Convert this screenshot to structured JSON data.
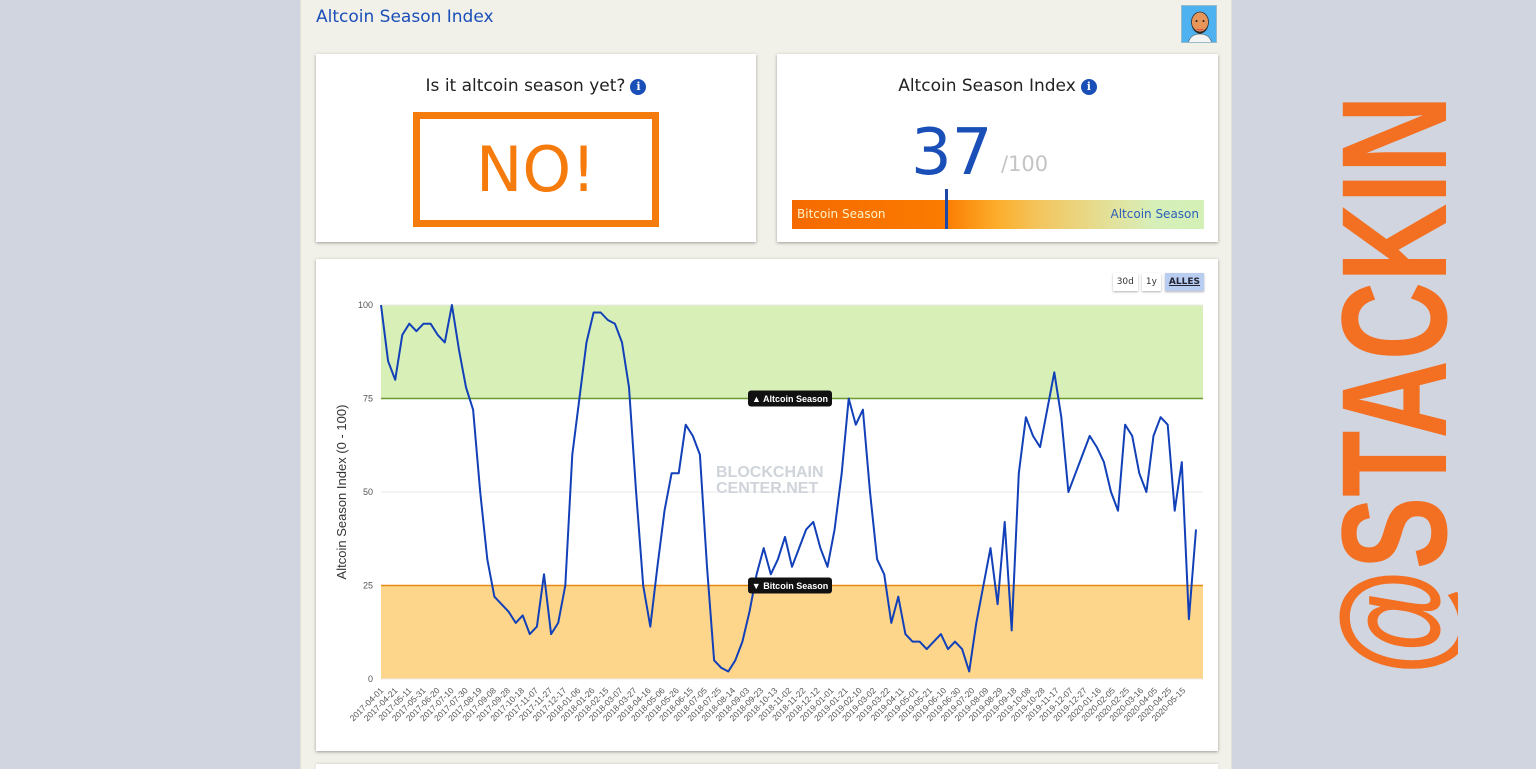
{
  "header": {
    "site_title": "Altcoin Season Index",
    "avatar_icon": "user-avatar-icon"
  },
  "season_card": {
    "title": "Is it altcoin season yet?",
    "info_icon": "i",
    "answer": "NO!",
    "answer_color": "#f57c0c"
  },
  "index_card": {
    "title": "Altcoin Season Index",
    "info_icon": "i",
    "value": "37",
    "max_label": "/100",
    "gauge_left_label": "Bitcoin Season",
    "gauge_right_label": "Altcoin Season",
    "value_color": "#1a4fb8"
  },
  "chart_controls": {
    "buttons": [
      {
        "label": "30d",
        "active": false
      },
      {
        "label": "1y",
        "active": false
      },
      {
        "label": "ALLES",
        "active": true
      }
    ]
  },
  "watermark": {
    "line1": "BLOCKCHAIN",
    "line2": "CENTER.NET"
  },
  "side_watermark": "@STACKIN",
  "chart_data": {
    "type": "line",
    "title": "",
    "xlabel": "",
    "ylabel": "Altcoin Season Index (0 - 100)",
    "ylim": [
      0,
      100
    ],
    "yticks": [
      0,
      25,
      50,
      75,
      100
    ],
    "grid": true,
    "legend": "none",
    "line_color": "#1240b8",
    "bands": [
      {
        "name": "Altcoin Season",
        "from": 75,
        "to": 100,
        "color": "#d8f0b8",
        "line_color": "#6a9a30",
        "label": "▲ Altcoin Season"
      },
      {
        "name": "Bitcoin Season",
        "from": 0,
        "to": 25,
        "color": "#fdd68c",
        "line_color": "#e88a10",
        "label": "▼ Bitcoin Season"
      }
    ],
    "x_tick_labels": [
      "2017-04-01",
      "2017-04-21",
      "2017-05-11",
      "2017-05-31",
      "2017-06-20",
      "2017-07-10",
      "2017-07-30",
      "2017-08-19",
      "2017-09-08",
      "2017-09-28",
      "2017-10-18",
      "2017-11-07",
      "2017-11-27",
      "2017-12-17",
      "2018-01-06",
      "2018-01-26",
      "2018-02-15",
      "2018-03-07",
      "2018-03-27",
      "2018-04-16",
      "2018-05-06",
      "2018-05-26",
      "2018-06-15",
      "2018-07-05",
      "2018-07-25",
      "2018-08-14",
      "2018-09-03",
      "2018-09-23",
      "2018-10-13",
      "2018-11-02",
      "2018-11-22",
      "2018-12-12",
      "2019-01-01",
      "2019-01-21",
      "2019-02-10",
      "2019-03-02",
      "2019-03-22",
      "2019-04-11",
      "2019-05-01",
      "2019-05-21",
      "2019-06-10",
      "2019-06-30",
      "2019-07-20",
      "2019-08-09",
      "2019-08-29",
      "2019-09-18",
      "2019-10-08",
      "2019-10-28",
      "2019-11-17",
      "2019-12-07",
      "2019-12-27",
      "2020-01-16",
      "2020-02-05",
      "2020-02-25",
      "2020-03-16",
      "2020-04-05",
      "2020-04-25",
      "2020-05-15"
    ],
    "x": [
      "2017-04-01",
      "2017-04-11",
      "2017-04-21",
      "2017-05-01",
      "2017-05-11",
      "2017-05-21",
      "2017-05-31",
      "2017-06-10",
      "2017-06-20",
      "2017-06-30",
      "2017-07-10",
      "2017-07-20",
      "2017-07-30",
      "2017-08-09",
      "2017-08-19",
      "2017-08-29",
      "2017-09-08",
      "2017-09-18",
      "2017-09-28",
      "2017-10-08",
      "2017-10-18",
      "2017-10-28",
      "2017-11-07",
      "2017-11-17",
      "2017-11-27",
      "2017-12-07",
      "2017-12-17",
      "2017-12-27",
      "2018-01-06",
      "2018-01-16",
      "2018-01-26",
      "2018-02-05",
      "2018-02-15",
      "2018-02-25",
      "2018-03-07",
      "2018-03-17",
      "2018-03-27",
      "2018-04-06",
      "2018-04-16",
      "2018-04-26",
      "2018-05-06",
      "2018-05-16",
      "2018-05-26",
      "2018-06-05",
      "2018-06-15",
      "2018-06-25",
      "2018-07-05",
      "2018-07-15",
      "2018-07-25",
      "2018-08-04",
      "2018-08-14",
      "2018-08-24",
      "2018-09-03",
      "2018-09-13",
      "2018-09-23",
      "2018-10-03",
      "2018-10-13",
      "2018-10-23",
      "2018-11-02",
      "2018-11-12",
      "2018-11-22",
      "2018-12-02",
      "2018-12-12",
      "2018-12-22",
      "2019-01-01",
      "2019-01-11",
      "2019-01-21",
      "2019-01-31",
      "2019-02-10",
      "2019-02-20",
      "2019-03-02",
      "2019-03-12",
      "2019-03-22",
      "2019-04-01",
      "2019-04-11",
      "2019-04-21",
      "2019-05-01",
      "2019-05-11",
      "2019-05-21",
      "2019-05-31",
      "2019-06-10",
      "2019-06-20",
      "2019-06-30",
      "2019-07-10",
      "2019-07-20",
      "2019-07-30",
      "2019-08-09",
      "2019-08-19",
      "2019-08-29",
      "2019-09-08",
      "2019-09-18",
      "2019-09-28",
      "2019-10-08",
      "2019-10-18",
      "2019-10-28",
      "2019-11-07",
      "2019-11-17",
      "2019-11-27",
      "2019-12-07",
      "2019-12-17",
      "2019-12-27",
      "2020-01-06",
      "2020-01-16",
      "2020-01-26",
      "2020-02-05",
      "2020-02-15",
      "2020-02-25",
      "2020-03-06",
      "2020-03-16",
      "2020-03-26",
      "2020-04-05",
      "2020-04-15",
      "2020-04-25",
      "2020-05-05",
      "2020-05-15",
      "2020-05-25"
    ],
    "values": [
      100,
      85,
      80,
      92,
      95,
      93,
      95,
      95,
      92,
      90,
      100,
      88,
      78,
      72,
      50,
      32,
      22,
      20,
      18,
      15,
      17,
      12,
      14,
      28,
      12,
      15,
      25,
      60,
      75,
      90,
      98,
      98,
      96,
      95,
      90,
      78,
      50,
      25,
      14,
      30,
      45,
      55,
      55,
      68,
      65,
      60,
      30,
      5,
      3,
      2,
      5,
      10,
      18,
      28,
      35,
      28,
      32,
      38,
      30,
      35,
      40,
      42,
      35,
      30,
      40,
      55,
      75,
      68,
      72,
      50,
      32,
      28,
      15,
      22,
      12,
      10,
      10,
      8,
      10,
      12,
      8,
      10,
      8,
      2,
      15,
      25,
      35,
      20,
      42,
      13,
      55,
      70,
      65,
      62,
      72,
      82,
      70,
      50,
      55,
      60,
      65,
      62,
      58,
      50,
      45,
      68,
      65,
      55,
      50,
      65,
      70,
      68,
      45,
      58,
      16,
      40
    ]
  }
}
